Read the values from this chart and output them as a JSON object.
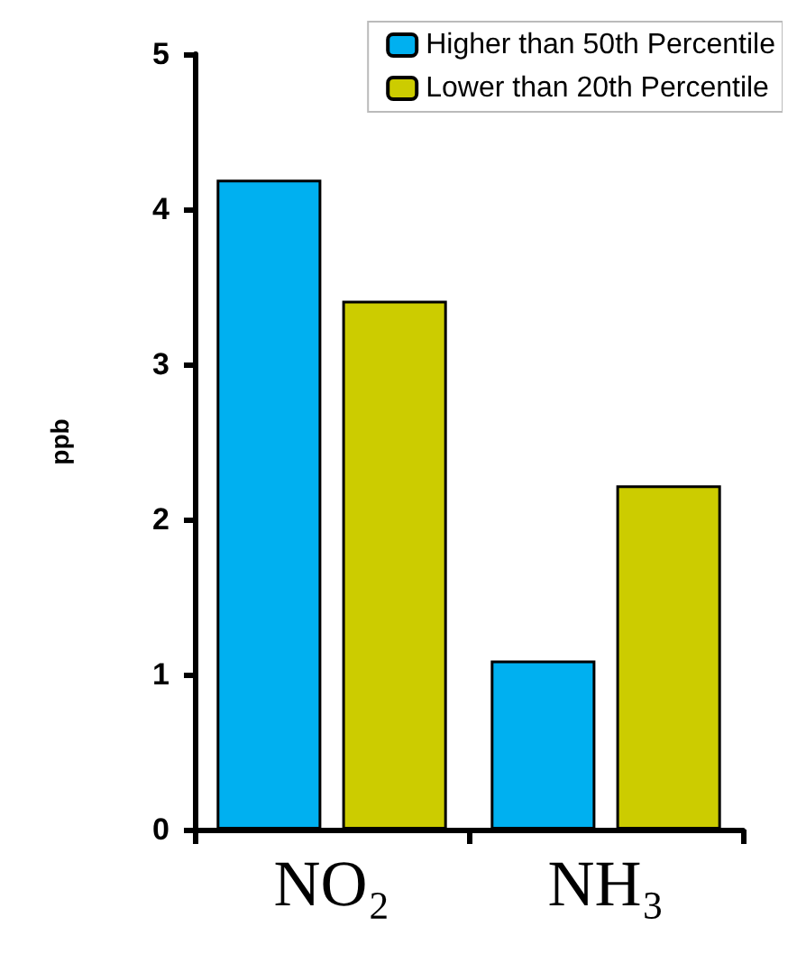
{
  "chart_data": {
    "type": "bar",
    "ylabel": "ppb",
    "categories": [
      "NO₂",
      "NH₃"
    ],
    "series": [
      {
        "name": "Higher than 50th Percentile",
        "color": "#00b0f0",
        "values": [
          4.19,
          1.09
        ]
      },
      {
        "name": "Lower than 20th Percentile",
        "color": "#cccc00",
        "values": [
          3.41,
          2.22
        ]
      }
    ],
    "ylim": [
      0,
      5
    ],
    "yticks": [
      0,
      1,
      2,
      3,
      4,
      5
    ],
    "grid": false,
    "legend": "top right"
  }
}
